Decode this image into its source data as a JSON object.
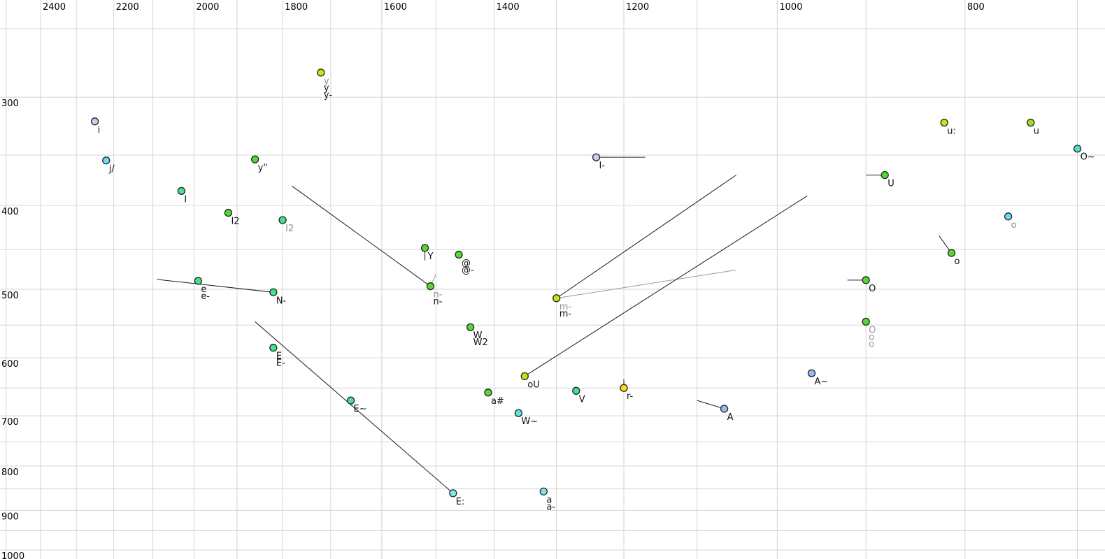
{
  "chart_data": {
    "type": "scatter",
    "title": "",
    "description": "Vowel formant plot: F2 (Hz) on reversed log x-axis, F1 (Hz) on downward log y-axis",
    "x_axis": {
      "scale": "log",
      "reversed": true,
      "tick_labels": [
        2400,
        2200,
        2000,
        1800,
        1600,
        1400,
        1200,
        1000,
        800
      ],
      "gridlines": [
        2500,
        2400,
        2300,
        2200,
        2100,
        2000,
        1900,
        1800,
        1700,
        1600,
        1500,
        1400,
        1300,
        1200,
        1100,
        1000,
        900,
        800,
        700
      ],
      "range": [
        2520,
        680
      ]
    },
    "y_axis": {
      "scale": "log",
      "downward": true,
      "tick_labels": [
        300,
        400,
        500,
        600,
        700,
        800,
        900,
        1000
      ],
      "gridlines": [
        250,
        300,
        350,
        400,
        450,
        500,
        550,
        600,
        650,
        700,
        750,
        800,
        850,
        900,
        950,
        1000
      ],
      "range": [
        232,
        1025
      ]
    },
    "colors": {
      "grid": "#d5d5d5",
      "segment_black": "#1a1a1a",
      "segment_gray": "#999999",
      "label_black": "#111111",
      "label_gray": "#8b8b9e",
      "point_stroke": "#222222"
    },
    "points": [
      {
        "f2": 2250,
        "f1": 320,
        "fill": "#ccccf0",
        "labels": [
          {
            "t": "i",
            "c": "#111111"
          }
        ]
      },
      {
        "f2": 2220,
        "f1": 355,
        "fill": "#6bd9ef",
        "labels": [
          {
            "t": "j/",
            "c": "#111111"
          }
        ]
      },
      {
        "f2": 2030,
        "f1": 385,
        "fill": "#45e18f",
        "labels": [
          {
            "t": "I",
            "c": "#111111"
          }
        ]
      },
      {
        "f2": 1920,
        "f1": 408,
        "fill": "#52d932",
        "labels": [
          {
            "t": "I2",
            "c": "#111111"
          }
        ]
      },
      {
        "f2": 1800,
        "f1": 416,
        "fill": "#45e18f",
        "labels": [
          {
            "t": "I2",
            "c": "#8b8b9e"
          }
        ]
      },
      {
        "f2": 1860,
        "f1": 354,
        "fill": "#52d932",
        "labels": [
          {
            "t": "y\"",
            "c": "#111111"
          }
        ]
      },
      {
        "f2": 1720,
        "f1": 281,
        "fill": "#cfe013",
        "labels": [
          {
            "t": "y",
            "c": "#8b8b9e"
          },
          {
            "t": "y",
            "c": "#111111"
          },
          {
            "t": "y-",
            "c": "#111111"
          }
        ]
      },
      {
        "f2": 1520,
        "f1": 448,
        "fill": "#52d932",
        "labels": [
          {
            "t": "Y",
            "c": "#111111"
          }
        ]
      },
      {
        "f2": 1460,
        "f1": 456,
        "fill": "#52d932",
        "labels": [
          {
            "t": "@",
            "c": "#111111"
          },
          {
            "t": "@-",
            "c": "#111111"
          }
        ]
      },
      {
        "f2": 1510,
        "f1": 496,
        "fill": "#52d932",
        "labels": [
          {
            "t": "n-",
            "c": "#8b8b9e"
          },
          {
            "t": "n-",
            "c": "#111111"
          }
        ]
      },
      {
        "f2": 1990,
        "f1": 489,
        "fill": "#45e18f",
        "labels": [
          {
            "t": "e",
            "c": "#111111"
          },
          {
            "t": "e-",
            "c": "#111111"
          }
        ]
      },
      {
        "f2": 1820,
        "f1": 504,
        "fill": "#45e18f",
        "labels": [
          {
            "t": "N-",
            "c": "#111111"
          }
        ]
      },
      {
        "f2": 1820,
        "f1": 584,
        "fill": "#45e18f",
        "labels": [
          {
            "t": "E",
            "c": "#111111"
          },
          {
            "t": "E-",
            "c": "#111111"
          }
        ]
      },
      {
        "f2": 1660,
        "f1": 672,
        "fill": "#45e18f",
        "labels": [
          {
            "t": "E~",
            "c": "#111111"
          }
        ]
      },
      {
        "f2": 1470,
        "f1": 860,
        "fill": "#7de8ea",
        "labels": [
          {
            "t": "E:",
            "c": "#111111"
          }
        ]
      },
      {
        "f2": 1440,
        "f1": 553,
        "fill": "#52d932",
        "labels": [
          {
            "t": "W",
            "c": "#111111"
          },
          {
            "t": "W2",
            "c": "#111111"
          }
        ]
      },
      {
        "f2": 1410,
        "f1": 658,
        "fill": "#52d932",
        "labels": [
          {
            "t": "a#",
            "c": "#111111"
          }
        ]
      },
      {
        "f2": 1360,
        "f1": 695,
        "fill": "#5fe3dc",
        "labels": [
          {
            "t": "W~",
            "c": "#111111"
          }
        ]
      },
      {
        "f2": 1350,
        "f1": 630,
        "fill": "#cfe013",
        "labels": [
          {
            "t": "oU",
            "c": "#111111"
          }
        ]
      },
      {
        "f2": 1320,
        "f1": 856,
        "fill": "#7de8ea",
        "labels": [
          {
            "t": "a",
            "c": "#111111"
          },
          {
            "t": "a-",
            "c": "#111111"
          }
        ]
      },
      {
        "f2": 1270,
        "f1": 655,
        "fill": "#45e18f",
        "labels": [
          {
            "t": "V",
            "c": "#111111"
          }
        ]
      },
      {
        "f2": 1300,
        "f1": 512,
        "fill": "#cfe013",
        "labels": [
          {
            "t": "m-",
            "c": "#8b8b9e"
          },
          {
            "t": "m-",
            "c": "#111111"
          }
        ]
      },
      {
        "f2": 1200,
        "f1": 650,
        "fill": "#f2e216",
        "labels": [
          {
            "t": "r-",
            "c": "#111111"
          }
        ]
      },
      {
        "f2": 1240,
        "f1": 352,
        "fill": "#ccccf0",
        "labels": [
          {
            "t": "I-",
            "c": "#111111"
          }
        ]
      },
      {
        "f2": 1065,
        "f1": 687,
        "fill": "#92bdf0",
        "labels": [
          {
            "t": "A",
            "c": "#111111"
          }
        ]
      },
      {
        "f2": 960,
        "f1": 625,
        "fill": "#92bdf0",
        "labels": [
          {
            "t": "A~",
            "c": "#111111"
          }
        ]
      },
      {
        "f2": 880,
        "f1": 369,
        "fill": "#52d932",
        "labels": [
          {
            "t": "U",
            "c": "#111111"
          }
        ]
      },
      {
        "f2": 900,
        "f1": 488,
        "fill": "#52d932",
        "labels": [
          {
            "t": "O",
            "c": "#111111"
          }
        ]
      },
      {
        "f2": 900,
        "f1": 545,
        "fill": "#52d932",
        "labels": [
          {
            "t": "O",
            "c": "#9898aa"
          },
          {
            "t": "o",
            "c": "#9898aa"
          },
          {
            "t": "o",
            "c": "#9898aa"
          }
        ]
      },
      {
        "f2": 813,
        "f1": 454,
        "fill": "#52d932",
        "labels": [
          {
            "t": "o",
            "c": "#111111"
          }
        ]
      },
      {
        "f2": 760,
        "f1": 412,
        "fill": "#66dfe8",
        "labels": [
          {
            "t": "o",
            "c": "#8b8b9e"
          }
        ]
      },
      {
        "f2": 820,
        "f1": 321,
        "fill": "#cfe013",
        "labels": [
          {
            "t": "u:",
            "c": "#111111"
          }
        ]
      },
      {
        "f2": 740,
        "f1": 321,
        "fill": "#9fdd26",
        "labels": [
          {
            "t": "u",
            "c": "#111111"
          }
        ]
      },
      {
        "f2": 700,
        "f1": 344,
        "fill": "#4fe0c6",
        "labels": [
          {
            "t": "O~",
            "c": "#111111"
          }
        ]
      }
    ],
    "segments": [
      {
        "f2a": 1780,
        "f1a": 380,
        "f2b": 1510,
        "f1b": 496,
        "c": "#1a1a1a"
      },
      {
        "f2a": 2090,
        "f1a": 487,
        "f2b": 1820,
        "f1b": 504,
        "c": "#1a1a1a"
      },
      {
        "f2a": 1860,
        "f1a": 545,
        "f2b": 1470,
        "f1b": 860,
        "c": "#1a1a1a"
      },
      {
        "f2a": 1300,
        "f1a": 512,
        "f2b": 1050,
        "f1b": 369,
        "c": "#1a1a1a"
      },
      {
        "f2a": 1300,
        "f1a": 512,
        "f2b": 1050,
        "f1b": 475,
        "c": "#999999"
      },
      {
        "f2a": 1350,
        "f1a": 630,
        "f2b": 965,
        "f1b": 390,
        "c": "#1a1a1a"
      },
      {
        "f2a": 1520,
        "f1a": 448,
        "f2b": 1520,
        "f1b": 463,
        "c": "#1a1a1a"
      },
      {
        "f2a": 1510,
        "f1a": 496,
        "f2b": 1500,
        "f1b": 480,
        "c": "#999999"
      },
      {
        "f2a": 1240,
        "f1a": 352,
        "f2b": 1170,
        "f1b": 352,
        "c": "#1a1a1a"
      },
      {
        "f2a": 880,
        "f1a": 369,
        "f2b": 900,
        "f1b": 369,
        "c": "#1a1a1a"
      },
      {
        "f2a": 900,
        "f1a": 488,
        "f2b": 920,
        "f1b": 488,
        "c": "#1a1a1a"
      },
      {
        "f2a": 813,
        "f1a": 454,
        "f2b": 825,
        "f1b": 434,
        "c": "#1a1a1a"
      },
      {
        "f2a": 1065,
        "f1a": 687,
        "f2b": 1100,
        "f1b": 672,
        "c": "#1a1a1a"
      },
      {
        "f2a": 1200,
        "f1a": 650,
        "f2b": 1200,
        "f1b": 635,
        "c": "#1a1a1a"
      }
    ]
  }
}
